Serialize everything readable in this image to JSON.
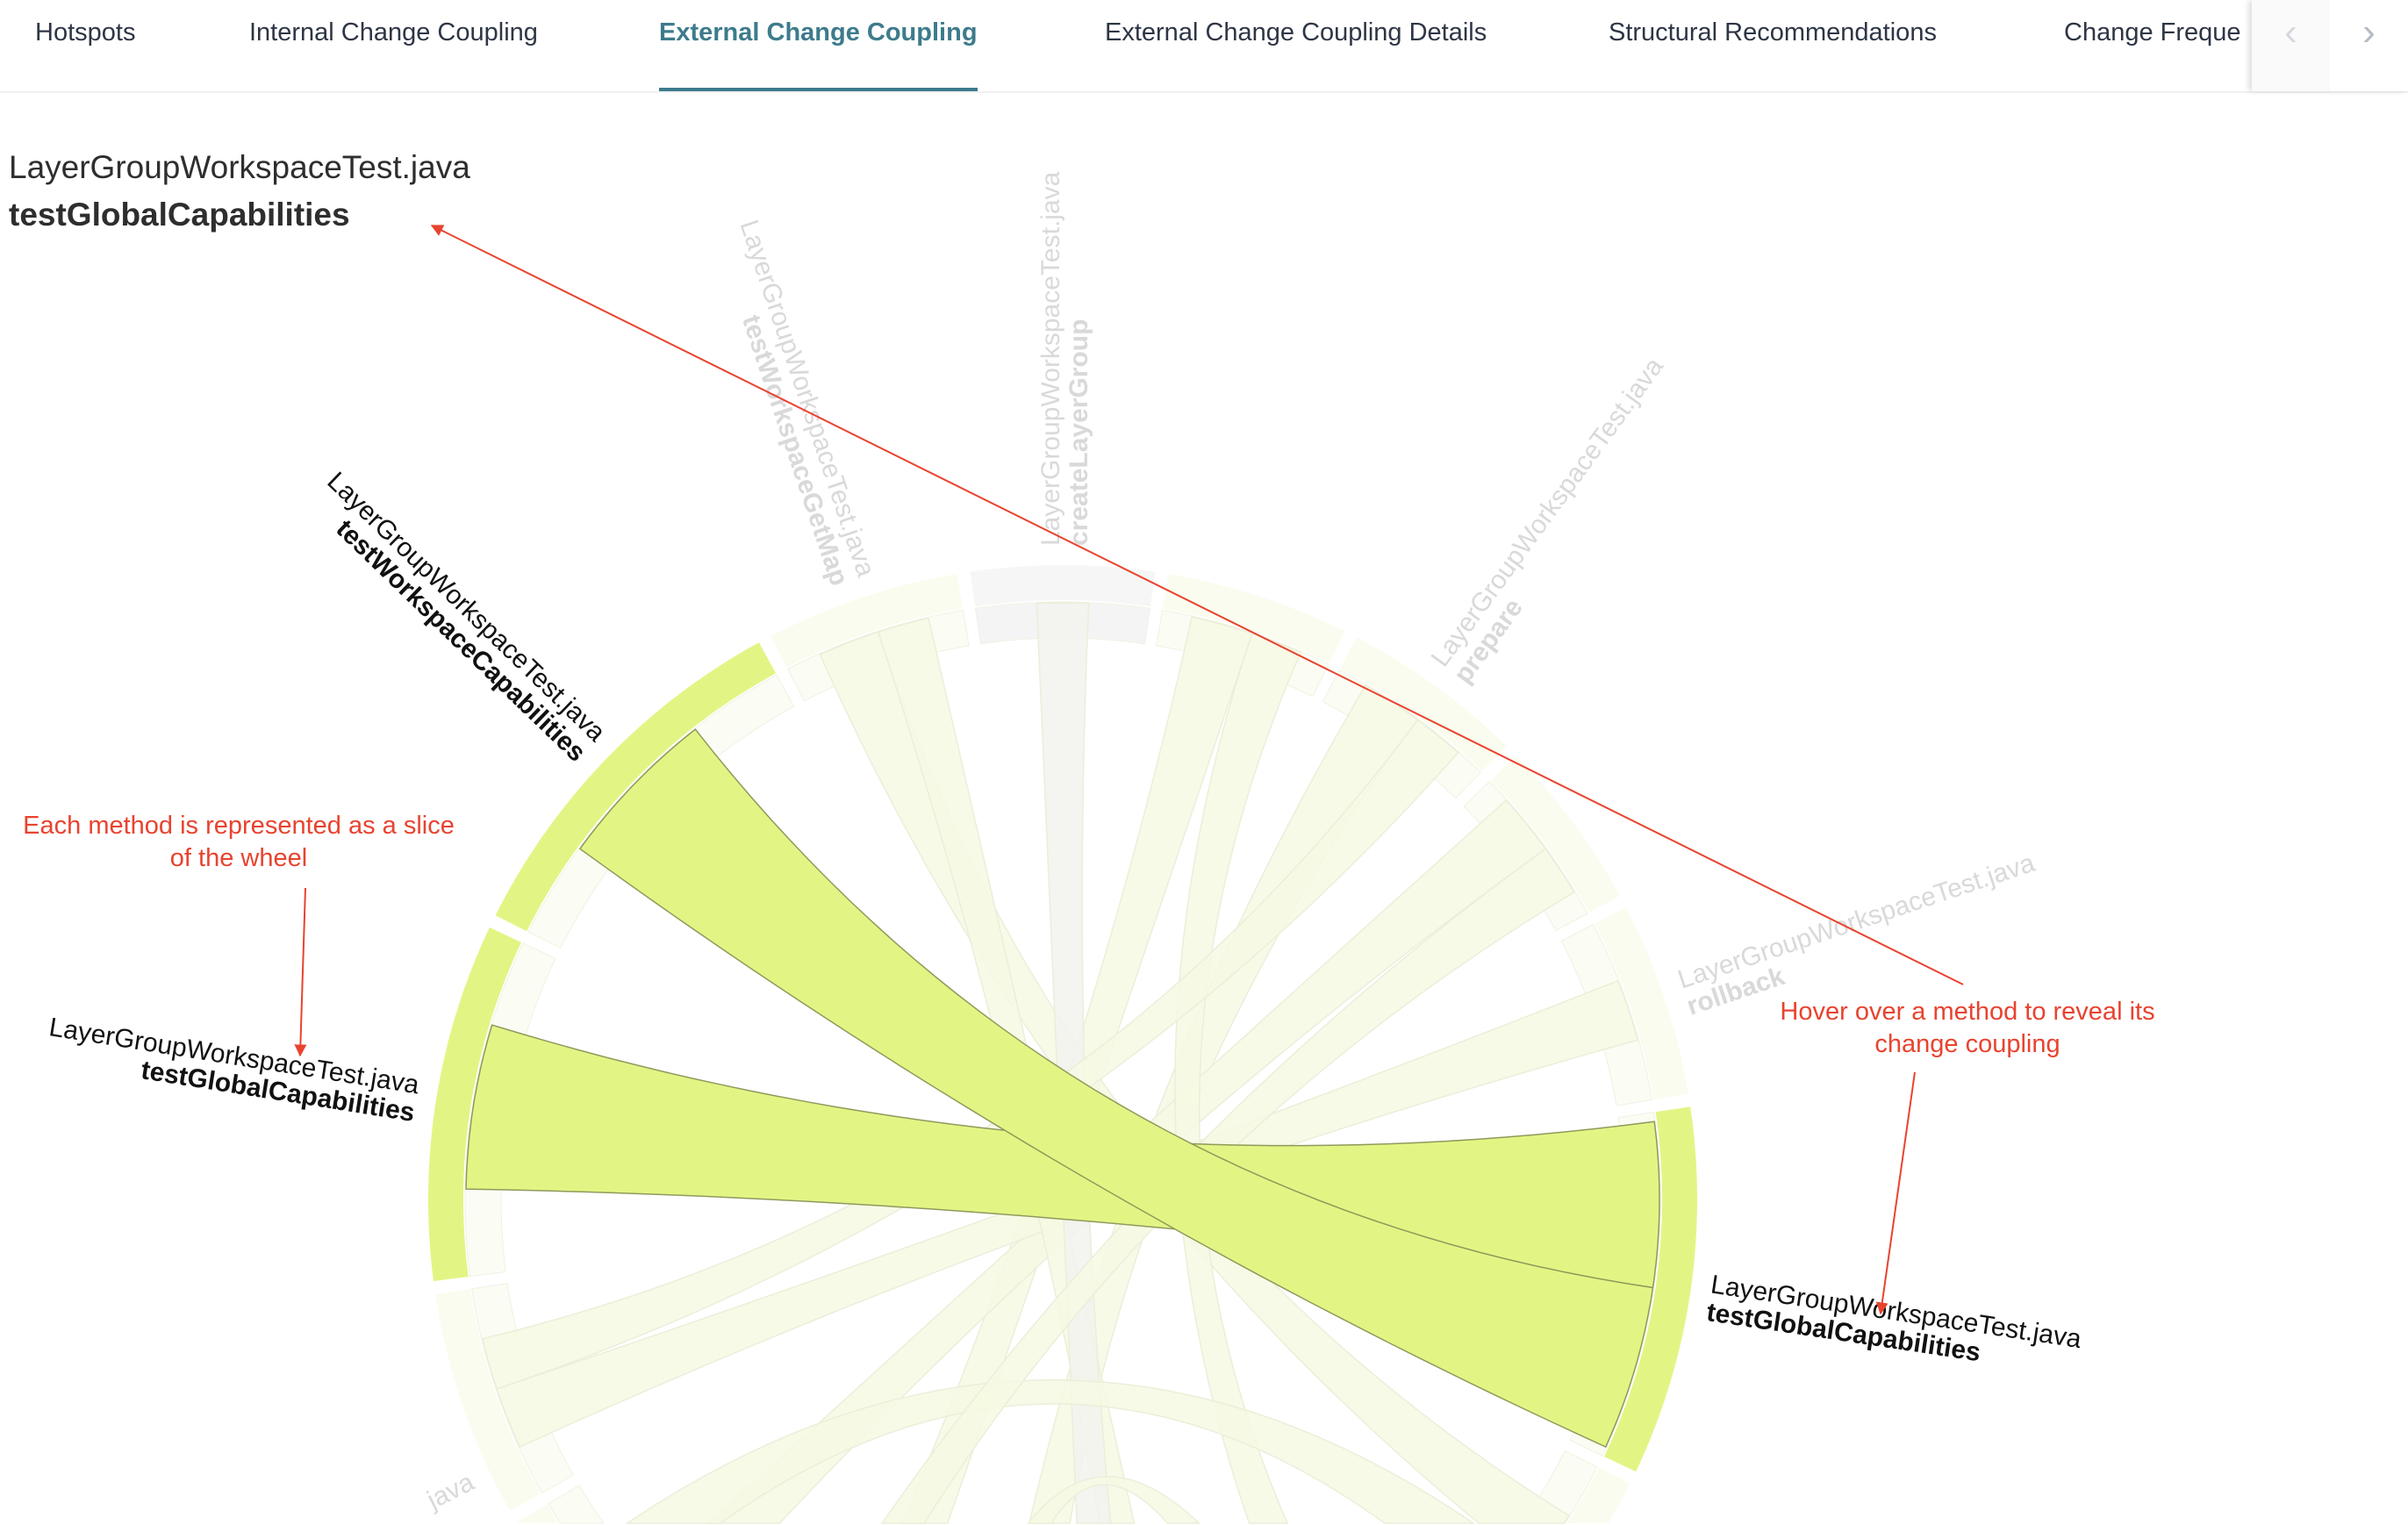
{
  "tabs": [
    {
      "label": "Hotspots",
      "active": false
    },
    {
      "label": "Internal Change Coupling",
      "active": false
    },
    {
      "label": "External Change Coupling",
      "active": true
    },
    {
      "label": "External Change Coupling Details",
      "active": false
    },
    {
      "label": "Structural Recommendations",
      "active": false
    },
    {
      "label": "Change Freque",
      "active": false
    }
  ],
  "nav": {
    "prev_icon": "chevron-left-icon",
    "next_icon": "chevron-right-icon",
    "prev": "‹",
    "next": "›"
  },
  "selection": {
    "file": "LayerGroupWorkspaceTest.java",
    "method": "testGlobalCapabilities"
  },
  "annotations": {
    "slice": "Each method is represented as a slice of the wheel",
    "hover": "Hover over a method to reveal its change coupling"
  },
  "colors": {
    "highlight": "#e2f584",
    "faded": "#fafcef",
    "faded_chord": "#f6f9e3",
    "neutral": "#f6f6f6",
    "accent": "#3d7b8c",
    "annotation": "#e8432f"
  },
  "chart_data": {
    "type": "chord",
    "nodes": [
      {
        "file": "LayerGroupWorkspaceTest.java",
        "method": "createLayerGroup",
        "weight": 18,
        "state": "neutral"
      },
      {
        "weight": 18,
        "state": "faded"
      },
      {
        "file": "LayerGroupWorkspaceTest.java",
        "method": "prepare",
        "weight": 18,
        "state": "faded"
      },
      {
        "weight": 17,
        "state": "faded"
      },
      {
        "file": "LayerGroupWorkspaceTest.java",
        "method": "rollback",
        "weight": 19,
        "state": "faded"
      },
      {
        "file": "LayerGroupWorkspaceTest.java",
        "method": "testGlobalCapabilities",
        "weight": 35,
        "state": "highlight"
      },
      {
        "weight": 24,
        "state": "faded"
      },
      {
        "weight": 25,
        "state": "faded"
      },
      {
        "weight": 15,
        "state": "faded"
      },
      {
        "weight": 15,
        "state": "faded"
      },
      {
        "weight": 20,
        "state": "faded"
      },
      {
        "file": "java",
        "weight": 25,
        "state": "faded"
      },
      {
        "weight": 22,
        "state": "faded"
      },
      {
        "file": "LayerGroupWorkspaceTest.java",
        "method": "testGlobalCapabilities",
        "weight": 34,
        "state": "highlight"
      },
      {
        "file": "LayerGroupWorkspaceTest.java",
        "method": "testWorkspaceCapabilities",
        "weight": 36,
        "state": "highlight"
      },
      {
        "file": "LayerGroupWorkspaceTest.java",
        "method": "testWorkspaceGetMap",
        "weight": 19,
        "state": "faded"
      }
    ],
    "links": [
      {
        "source": 13,
        "target": 5,
        "value": 16,
        "state": "highlight"
      },
      {
        "source": 14,
        "target": 5,
        "value": 16,
        "state": "highlight"
      },
      {
        "source": 1,
        "target": 10,
        "value": 6,
        "state": "faded"
      },
      {
        "source": 2,
        "target": 9,
        "value": 6,
        "state": "faded"
      },
      {
        "source": 3,
        "target": 11,
        "value": 6,
        "state": "faded"
      },
      {
        "source": 4,
        "target": 12,
        "value": 6,
        "state": "faded"
      },
      {
        "source": 6,
        "target": 15,
        "value": 6,
        "state": "faded"
      },
      {
        "source": 7,
        "target": 1,
        "value": 5,
        "state": "faded"
      },
      {
        "source": 8,
        "target": 15,
        "value": 5,
        "state": "faded"
      },
      {
        "source": 0,
        "target": 8,
        "value": 5,
        "state": "neutral"
      },
      {
        "source": 12,
        "target": 2,
        "value": 5,
        "state": "faded"
      },
      {
        "source": 11,
        "target": 6,
        "value": 6,
        "state": "faded"
      },
      {
        "source": 10,
        "target": 3,
        "value": 5,
        "state": "faded"
      },
      {
        "source": 9,
        "target": 7,
        "value": 5,
        "state": "faded"
      }
    ]
  }
}
